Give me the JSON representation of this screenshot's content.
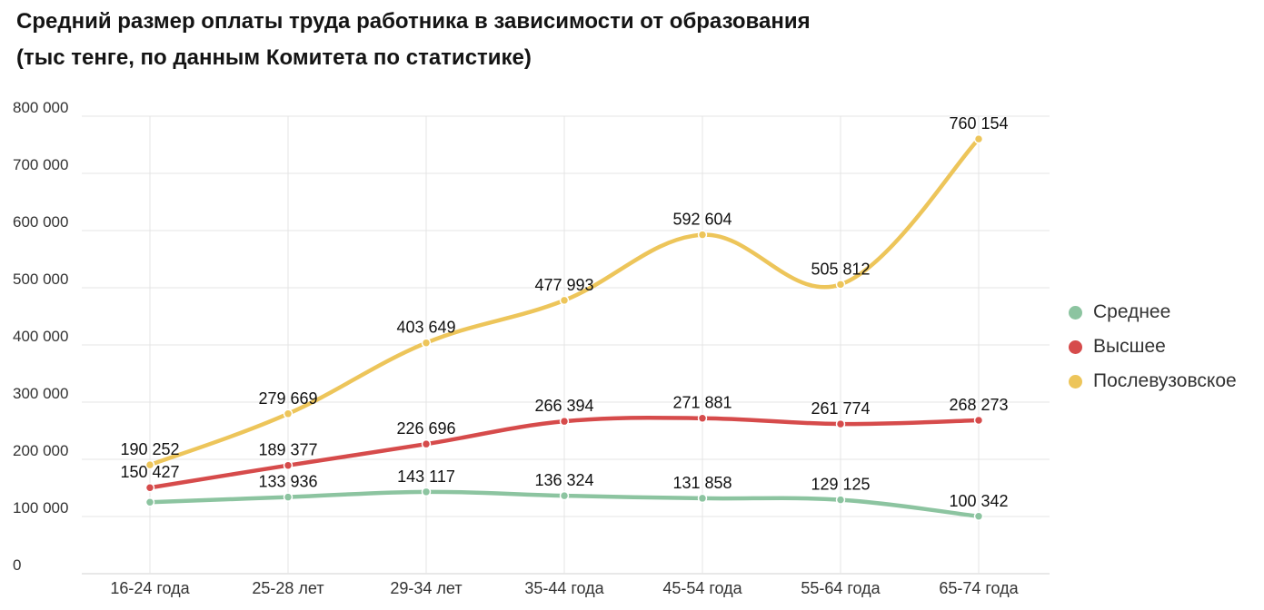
{
  "title_line1": "Средний размер оплаты труда работника в зависимости от образования",
  "title_line2": "(тыс тенге, по данным Комитета по статистике)",
  "chart_data": {
    "type": "line",
    "title": "Средний размер оплаты труда работника в зависимости от образования (тыс тенге, по данным Комитета по статистике)",
    "categories": [
      "16-24 года",
      "25-28 лет",
      "29-34 лет",
      "35-44 года",
      "45-54 года",
      "55-64 года",
      "65-74 года"
    ],
    "ylim": [
      0,
      800000
    ],
    "yticks": [
      0,
      100000,
      200000,
      300000,
      400000,
      500000,
      600000,
      700000,
      800000
    ],
    "ytick_labels": [
      "0",
      "100 000",
      "200 000",
      "300 000",
      "400 000",
      "500 000",
      "600 000",
      "700 000",
      "800 000"
    ],
    "grid": true,
    "legend_position": "right",
    "series": [
      {
        "name": "Среднее",
        "color": "#8cc4a0",
        "values": [
          125000,
          133936,
          143117,
          136324,
          131858,
          129125,
          100342
        ],
        "labels": [
          "",
          "133 936",
          "143 117",
          "136 324",
          "131 858",
          "129 125",
          "100 342"
        ]
      },
      {
        "name": "Высшее",
        "color": "#d64b4b",
        "values": [
          150427,
          189377,
          226696,
          266394,
          271881,
          261774,
          268273
        ],
        "labels": [
          "150 427",
          "189 377",
          "226 696",
          "266 394",
          "271 881",
          "261 774",
          "268 273"
        ]
      },
      {
        "name": "Послевузовское",
        "color": "#edc55a",
        "values": [
          190252,
          279669,
          403649,
          477993,
          592604,
          505812,
          760154
        ],
        "labels": [
          "190 252",
          "279 669",
          "403 649",
          "477 993",
          "592 604",
          "505 812",
          "760 154"
        ]
      }
    ]
  }
}
